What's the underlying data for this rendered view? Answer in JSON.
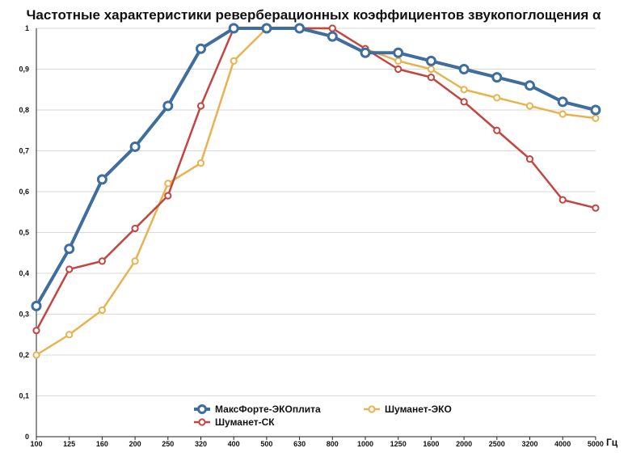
{
  "chart_data": {
    "type": "line",
    "title": "Частотные характеристики реверберационных коэффициентов звукопоглощения α",
    "xlabel": "",
    "ylabel": "",
    "x_unit": "Гц",
    "categories": [
      "100",
      "125",
      "160",
      "200",
      "250",
      "320",
      "400",
      "500",
      "630",
      "800",
      "1000",
      "1250",
      "1600",
      "2000",
      "2500",
      "3200",
      "4000",
      "5000"
    ],
    "ylim": [
      0,
      1
    ],
    "yticks": [
      "0",
      "0,1",
      "0,2",
      "0,3",
      "0,4",
      "0,5",
      "0,6",
      "0,7",
      "0,8",
      "0,9",
      "1"
    ],
    "grid": "horizontal",
    "legend_position": "bottom-center",
    "series": [
      {
        "name": "МаксФорте-ЭКОплита",
        "color": "#3f6d9d",
        "values": [
          0.32,
          0.46,
          0.63,
          0.71,
          0.81,
          0.95,
          1.0,
          1.0,
          1.0,
          0.98,
          0.94,
          0.94,
          0.92,
          0.9,
          0.88,
          0.86,
          0.82,
          0.8
        ]
      },
      {
        "name": "Шуманет-СК",
        "color": "#c44540",
        "values": [
          0.26,
          0.41,
          0.43,
          0.51,
          0.59,
          0.81,
          1.0,
          1.0,
          1.0,
          1.0,
          0.95,
          0.9,
          0.88,
          0.82,
          0.75,
          0.68,
          0.58,
          0.56
        ]
      },
      {
        "name": "Шуманет-ЭКО",
        "color": "#e8b34f",
        "values": [
          0.2,
          0.25,
          0.31,
          0.43,
          0.62,
          0.67,
          0.92,
          1.0,
          1.0,
          1.0,
          0.95,
          0.92,
          0.9,
          0.85,
          0.83,
          0.81,
          0.79,
          0.78
        ]
      }
    ]
  }
}
